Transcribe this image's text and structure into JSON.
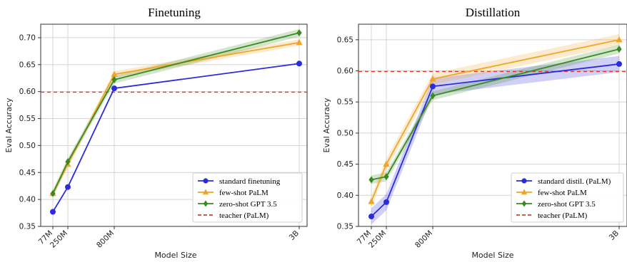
{
  "chart_data": [
    {
      "type": "line",
      "title": "Finetuning",
      "xlabel": "Model Size",
      "ylabel": "Eval Accuracy",
      "categories": [
        "77M",
        "250M",
        "800M",
        "3B"
      ],
      "ylim": [
        0.35,
        0.725
      ],
      "yticks": [
        "0.35",
        "0.40",
        "0.45",
        "0.50",
        "0.55",
        "0.60",
        "0.65",
        "0.70"
      ],
      "grid": true,
      "legend_position": "bottom-right",
      "series": [
        {
          "name": "standard finetuning",
          "color": "#2b2bdc",
          "marker": "circle",
          "values": [
            0.377,
            0.423,
            0.606,
            0.652
          ],
          "band": 0.0
        },
        {
          "name": "few-shot PaLM",
          "color": "#f0a526",
          "marker": "triangle",
          "values": [
            0.411,
            0.465,
            0.632,
            0.691
          ],
          "band": 0.006
        },
        {
          "name": "zero-shot GPT 3.5",
          "color": "#3a8a22",
          "marker": "diamond",
          "values": [
            0.411,
            0.47,
            0.622,
            0.709
          ],
          "band": 0.007
        }
      ],
      "reference": {
        "name": "teacher (PaLM)",
        "color": "#e03b2b",
        "value": 0.599
      }
    },
    {
      "type": "line",
      "title": "Distillation",
      "xlabel": "Model Size",
      "ylabel": "Eval Accuracy",
      "categories": [
        "77M",
        "250M",
        "800M",
        "3B"
      ],
      "ylim": [
        0.35,
        0.675
      ],
      "yticks": [
        "0.35",
        "0.40",
        "0.45",
        "0.50",
        "0.55",
        "0.60",
        "0.65"
      ],
      "grid": true,
      "legend_position": "bottom-right",
      "series": [
        {
          "name": "standard distil. (PaLM)",
          "color": "#2b2bdc",
          "marker": "circle",
          "values": [
            0.366,
            0.389,
            0.575,
            0.611
          ],
          "band": 0.013
        },
        {
          "name": "few-shot PaLM",
          "color": "#f0a526",
          "marker": "triangle",
          "values": [
            0.39,
            0.45,
            0.587,
            0.65
          ],
          "band": 0.009
        },
        {
          "name": "zero-shot GPT 3.5",
          "color": "#3a8a22",
          "marker": "diamond",
          "values": [
            0.425,
            0.43,
            0.56,
            0.635
          ],
          "band": 0.007
        }
      ],
      "reference": {
        "name": "teacher (PaLM)",
        "color": "#e03b2b",
        "value": 0.599
      }
    }
  ]
}
